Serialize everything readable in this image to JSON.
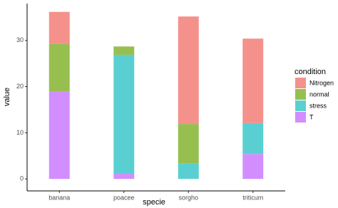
{
  "chart_data": {
    "type": "stacked_bar",
    "x_label": "specie",
    "y_label": "value",
    "categories": [
      "banana",
      "poacee",
      "sorgho",
      "triticum"
    ],
    "legend_title": "condition",
    "series": [
      {
        "name": "Nitrogen",
        "color": "#f4918b",
        "values": [
          6.9,
          0,
          23.3,
          18.3
        ]
      },
      {
        "name": "normal",
        "color": "#97bf4f",
        "values": [
          10.3,
          1.8,
          8.5,
          0
        ]
      },
      {
        "name": "stress",
        "color": "#5acfd2",
        "values": [
          0,
          25.8,
          3.4,
          6.7
        ]
      },
      {
        "name": "T",
        "color": "#d28eff",
        "values": [
          19,
          1.1,
          0,
          5.4
        ]
      }
    ],
    "ylim": [
      -2.6,
      38
    ],
    "yticks": [
      0,
      10,
      20,
      30
    ],
    "legend": "right"
  }
}
